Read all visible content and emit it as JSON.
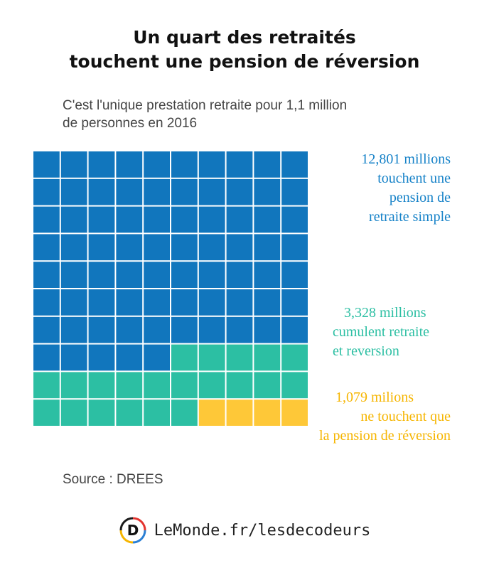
{
  "title_lines": [
    "Un quart des retraités",
    "touchent une pension de réversion"
  ],
  "subtitle_lines": [
    "C'est l'unique prestation retraite pour 1,1 million",
    "de personnes en 2016"
  ],
  "colors": {
    "retraite_simple": "#1176bd",
    "cumul": "#2cbfa3",
    "reversion": "#fec838",
    "label_blue": "#1682c8",
    "label_green": "#2cbfa3",
    "label_yellow": "#f6b500"
  },
  "chart_data": {
    "type": "waffle",
    "grid": {
      "rows": 10,
      "cols": 10
    },
    "series": [
      {
        "name": "retraite simple",
        "squares": 75,
        "color": "#1176bd"
      },
      {
        "name": "retraite et reversion",
        "squares": 21,
        "color": "#2cbfa3"
      },
      {
        "name": "pension de réversion",
        "squares": 4,
        "color": "#fec838"
      }
    ]
  },
  "labels": {
    "blue": [
      "12,801 millions",
      "touchent une",
      "pension de",
      "retraite simple"
    ],
    "green": [
      "3,328 millions",
      "cumulent retraite",
      "et reversion"
    ],
    "yellow": [
      "1,079 milions",
      "ne touchent que",
      "la pension de réversion"
    ]
  },
  "source": "Source : DREES",
  "footer": {
    "brand": "LeMonde.fr/lesdecodeurs",
    "logo_letter": "D",
    "logo_icon": "les-decodeurs-logo-icon"
  }
}
